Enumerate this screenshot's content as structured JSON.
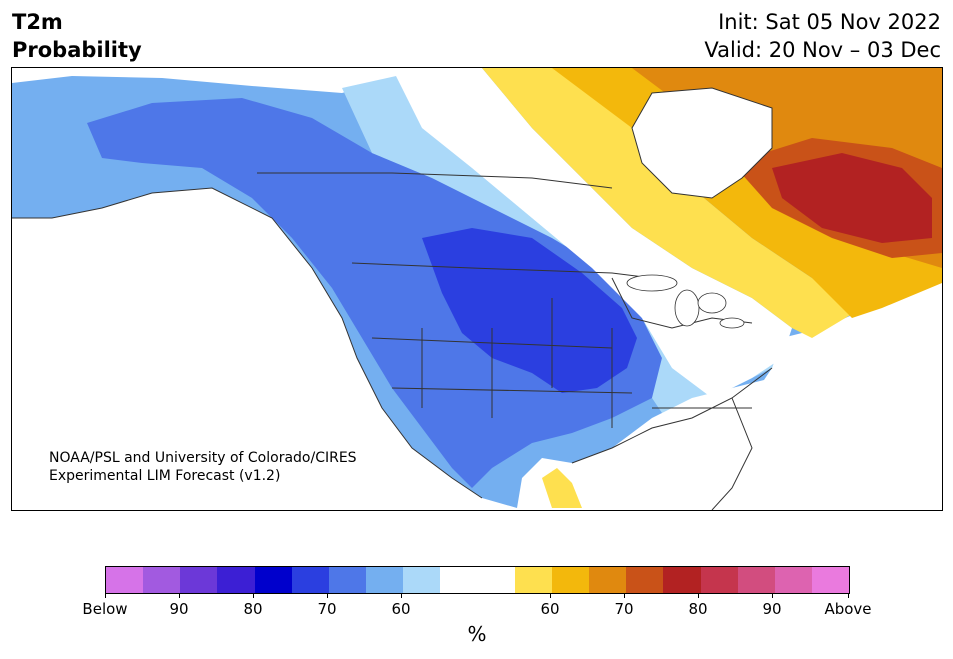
{
  "title": {
    "left_line1": "T2m",
    "left_line2": "Probability",
    "init": "Init: Sat 05 Nov 2022",
    "valid": "Valid: 20 Nov – 03 Dec"
  },
  "credit": {
    "line1": "NOAA/PSL and University of Colorado/CIRES",
    "line2": "Experimental LIM Forecast (v1.2)"
  },
  "colorbar": {
    "colors": [
      "#d673e8",
      "#a25ae0",
      "#6c38d8",
      "#3c1fd4",
      "#0000cc",
      "#2b3fe0",
      "#4e77e8",
      "#74aff0",
      "#abd9f9",
      "#ffffff",
      "#ffffff",
      "#fee04f",
      "#f3b80c",
      "#e0890f",
      "#c95218",
      "#b22222",
      "#c5354d",
      "#d24d7f",
      "#dd63b0",
      "#ea7ade"
    ],
    "ticks": [
      {
        "label": "Below"
      },
      {
        "label": "90"
      },
      {
        "label": "80"
      },
      {
        "label": "70"
      },
      {
        "label": "60"
      },
      {
        "label": "60"
      },
      {
        "label": "70"
      },
      {
        "label": "80"
      },
      {
        "label": "90"
      },
      {
        "label": "Above"
      }
    ],
    "unit": "%"
  }
}
